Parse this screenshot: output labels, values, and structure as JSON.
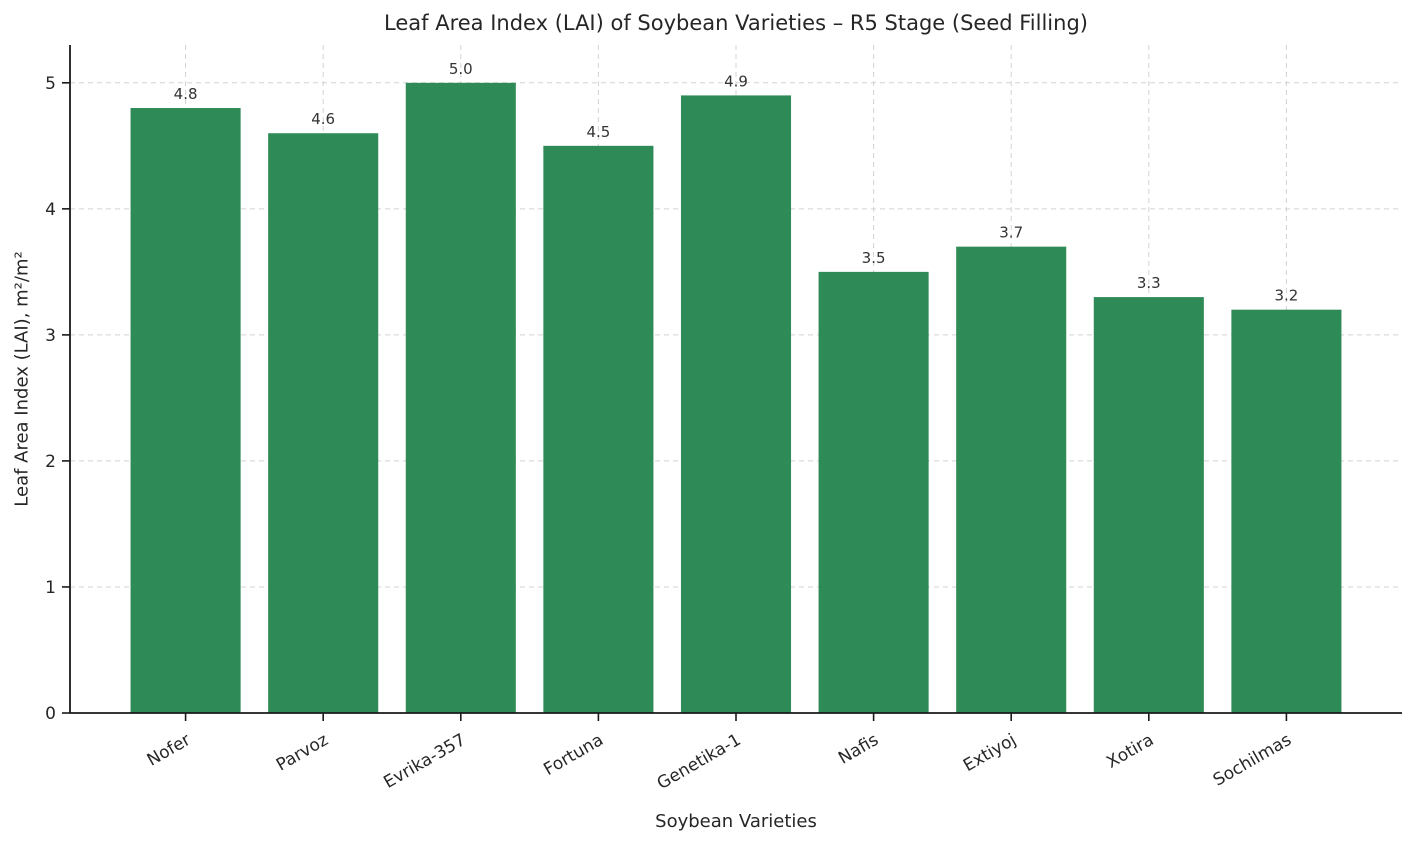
{
  "chart_data": {
    "type": "bar",
    "title": "Leaf Area Index (LAI) of Soybean Varieties – R5 Stage (Seed Filling)",
    "xlabel": "Soybean Varieties",
    "ylabel": "Leaf Area Index (LAI), m²/m²",
    "categories": [
      "Nofer",
      "Parvoz",
      "Evrika-357",
      "Fortuna",
      "Genetika-1",
      "Nafis",
      "Extiyoj",
      "Xotira",
      "Sochilmas"
    ],
    "values": [
      4.8,
      4.6,
      5.0,
      4.5,
      4.9,
      3.5,
      3.7,
      3.3,
      3.2
    ],
    "ylim": [
      0,
      5.3
    ],
    "yticks": [
      0,
      1,
      2,
      3,
      4,
      5
    ],
    "bar_color": "#2e8b57",
    "grid": true,
    "grid_style": "dashed",
    "legend_position": "none"
  },
  "colors": {
    "background": "#ffffff",
    "bar": "#2e8b57",
    "grid": "#d3d3d3",
    "axis": "#1a1a1a",
    "text": "#262626"
  }
}
